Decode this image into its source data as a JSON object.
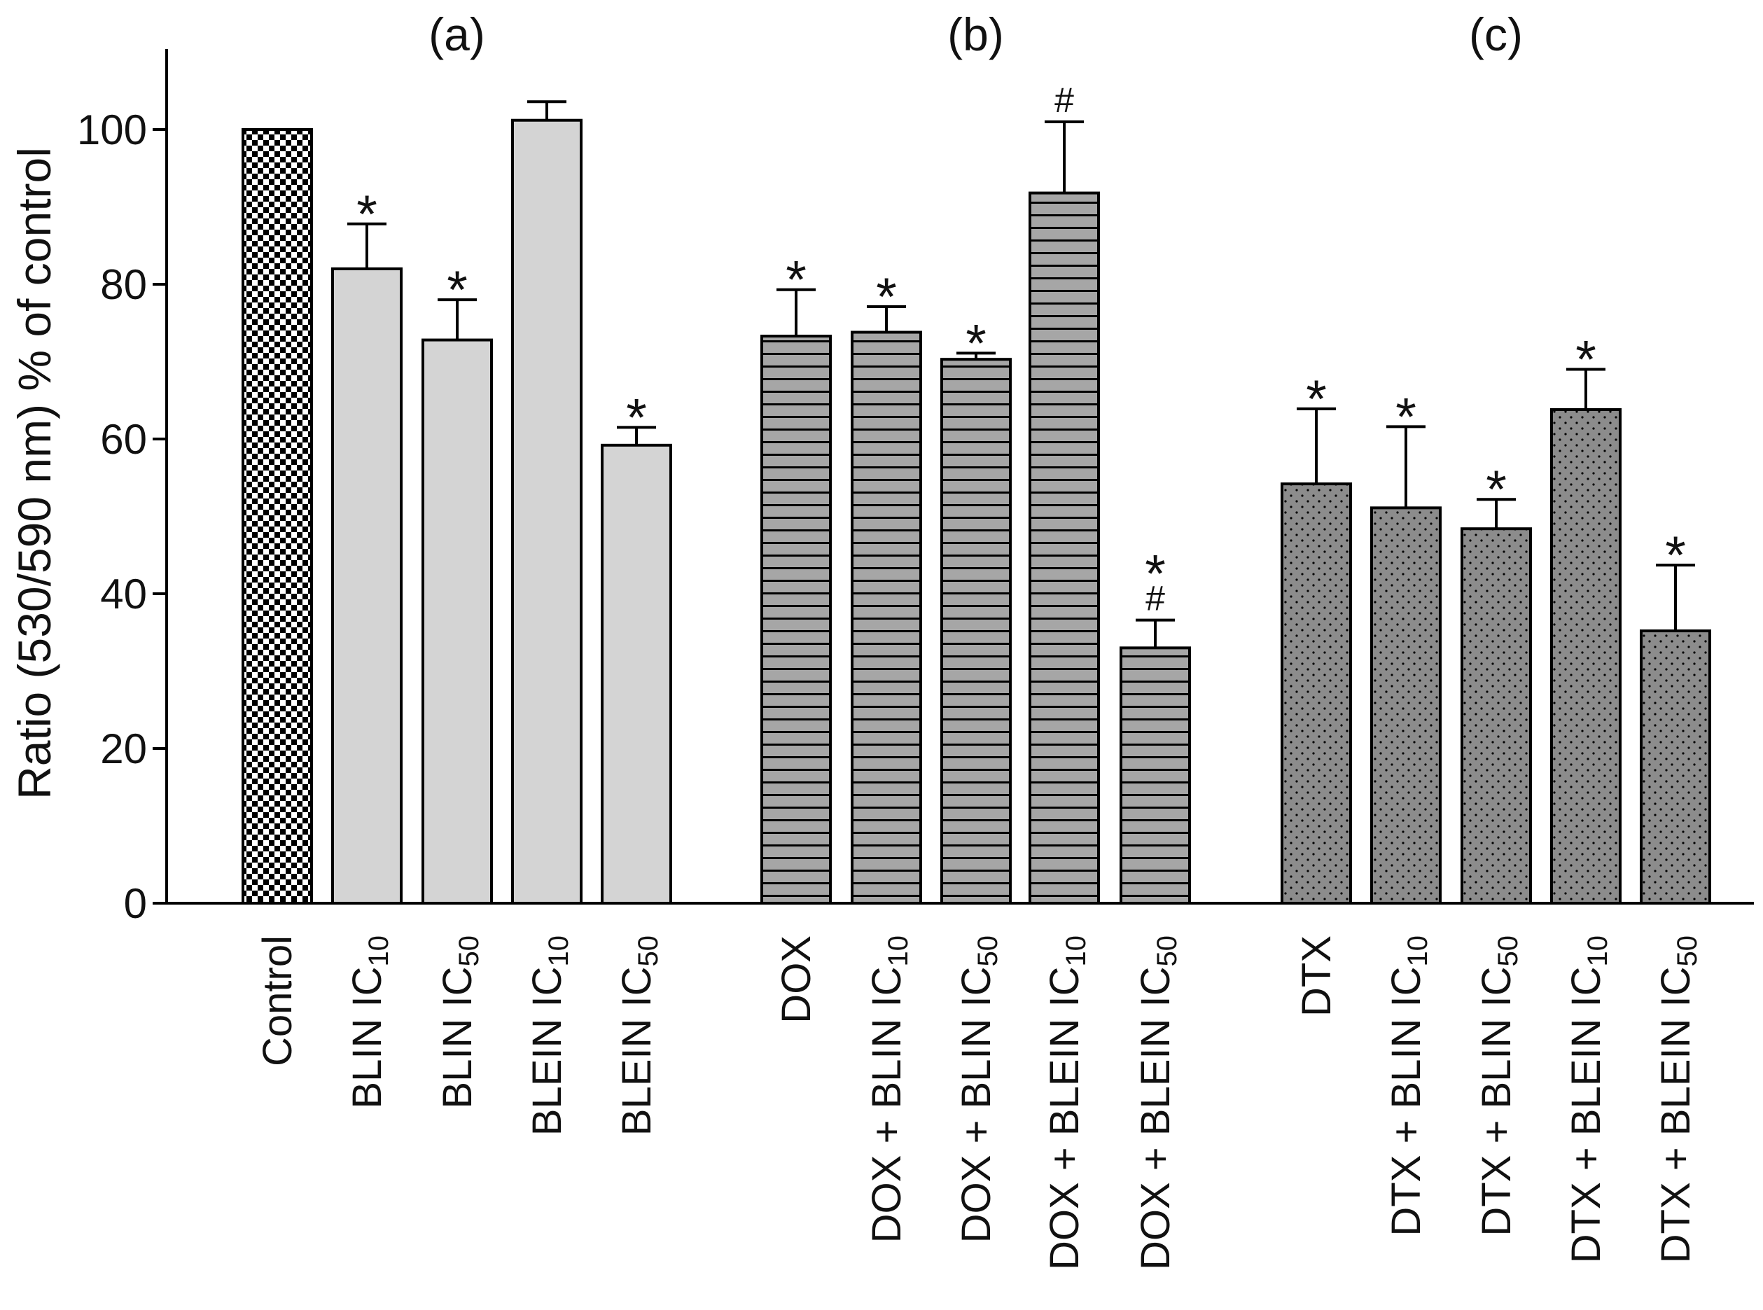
{
  "chart_data": {
    "type": "bar",
    "ylabel": "Ratio (530/590 nm) % of control",
    "xlabel": "",
    "ylim": [
      0,
      110
    ],
    "yticks": [
      0,
      20,
      40,
      60,
      80,
      100
    ],
    "grid": false,
    "panels": [
      {
        "label": "(a)",
        "first": 0,
        "last": 4
      },
      {
        "label": "(b)",
        "first": 5,
        "last": 9
      },
      {
        "label": "(c)",
        "first": 10,
        "last": 14
      }
    ],
    "bars": [
      {
        "prefix": "Control",
        "sub": "",
        "value": 100,
        "error": 0,
        "pattern": "checker",
        "annotations": []
      },
      {
        "prefix": "BLIN IC",
        "sub": "10",
        "value": 82,
        "error": 5.8,
        "pattern": "light",
        "annotations": [
          "*"
        ]
      },
      {
        "prefix": "BLIN IC",
        "sub": "50",
        "value": 72.8,
        "error": 5.2,
        "pattern": "light",
        "annotations": [
          "*"
        ]
      },
      {
        "prefix": "BLEIN IC",
        "sub": "10",
        "value": 101.2,
        "error": 2.4,
        "pattern": "light",
        "annotations": []
      },
      {
        "prefix": "BLEIN IC",
        "sub": "50",
        "value": 59.2,
        "error": 2.3,
        "pattern": "light",
        "annotations": [
          "*"
        ]
      },
      {
        "prefix": "DOX",
        "sub": "",
        "value": 73.3,
        "error": 6.0,
        "pattern": "stripes",
        "annotations": [
          "*"
        ]
      },
      {
        "prefix": "DOX + BLIN IC",
        "sub": "10",
        "value": 73.8,
        "error": 3.3,
        "pattern": "stripes",
        "annotations": [
          "*"
        ]
      },
      {
        "prefix": "DOX + BLIN IC",
        "sub": "50",
        "value": 70.3,
        "error": 0.8,
        "pattern": "stripes",
        "annotations": [
          "*"
        ]
      },
      {
        "prefix": "DOX + BLEIN IC",
        "sub": "10",
        "value": 91.8,
        "error": 9.2,
        "pattern": "stripes",
        "annotations": [
          "#"
        ]
      },
      {
        "prefix": "DOX + BLEIN IC",
        "sub": "50",
        "value": 33.0,
        "error": 3.6,
        "pattern": "stripes",
        "annotations": [
          "#",
          "*"
        ]
      },
      {
        "prefix": "DTX",
        "sub": "",
        "value": 54.2,
        "error": 9.7,
        "pattern": "dots",
        "annotations": [
          "*"
        ]
      },
      {
        "prefix": "DTX + BLIN IC",
        "sub": "10",
        "value": 51.1,
        "error": 10.5,
        "pattern": "dots",
        "annotations": [
          "*"
        ]
      },
      {
        "prefix": "DTX + BLIN IC",
        "sub": "50",
        "value": 48.4,
        "error": 3.8,
        "pattern": "dots",
        "annotations": [
          "*"
        ]
      },
      {
        "prefix": "DTX + BLEIN IC",
        "sub": "10",
        "value": 63.8,
        "error": 5.2,
        "pattern": "dots",
        "annotations": [
          "*"
        ]
      },
      {
        "prefix": "DTX + BLEIN IC",
        "sub": "50",
        "value": 35.2,
        "error": 8.5,
        "pattern": "dots",
        "annotations": [
          "*"
        ]
      }
    ]
  },
  "colors": {
    "light_fill": "#d4d4d4",
    "stripe_fill": "#a6a6a6",
    "dot_fill": "#8c8c8c",
    "checker_dark": "#000000",
    "checker_light": "#ffffff",
    "ink": "#000000"
  }
}
